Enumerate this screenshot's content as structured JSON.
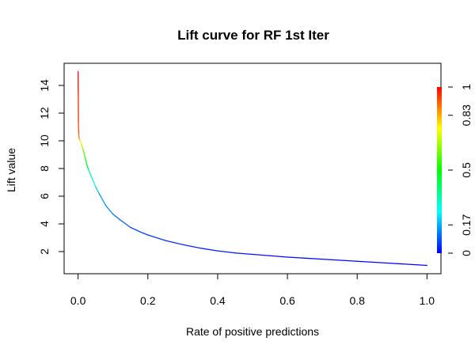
{
  "chart_data": {
    "type": "line",
    "title": "Lift curve for RF 1st Iter",
    "xlabel": "Rate of positive predictions",
    "ylabel": "Lift value",
    "xlim": [
      -0.04,
      1.04
    ],
    "ylim": [
      0.4,
      15.6
    ],
    "x_ticks": [
      "0.0",
      "0.2",
      "0.4",
      "0.6",
      "0.8",
      "1.0"
    ],
    "y_ticks": [
      "2",
      "4",
      "6",
      "8",
      "10",
      "12",
      "14"
    ],
    "colorkey": {
      "ticks": [
        "0",
        "0.17",
        "0.5",
        "0.83",
        "1"
      ],
      "colors": [
        "#0000ff",
        "#00ffff",
        "#00ff00",
        "#ffff00",
        "#ff0000"
      ]
    },
    "series": [
      {
        "x": [
          0.0,
          0.0005,
          0.001,
          0.002,
          0.003,
          0.004,
          0.006,
          0.008,
          0.01,
          0.015,
          0.02,
          0.025,
          0.03,
          0.04,
          0.05,
          0.06,
          0.08,
          0.1,
          0.12,
          0.15,
          0.18,
          0.2,
          0.25,
          0.3,
          0.35,
          0.4,
          0.45,
          0.5,
          0.55,
          0.6,
          0.7,
          0.8,
          0.9,
          1.0
        ],
        "y": [
          15.0,
          13.4,
          11.3,
          10.5,
          10.2,
          10.1,
          10.0,
          9.9,
          9.7,
          9.3,
          8.8,
          8.3,
          7.9,
          7.3,
          6.7,
          6.2,
          5.3,
          4.7,
          4.3,
          3.75,
          3.4,
          3.2,
          2.8,
          2.5,
          2.25,
          2.05,
          1.9,
          1.8,
          1.7,
          1.6,
          1.45,
          1.3,
          1.15,
          1.0
        ],
        "cutoff": [
          1.0,
          0.98,
          0.95,
          0.9,
          0.86,
          0.83,
          0.78,
          0.74,
          0.7,
          0.62,
          0.55,
          0.47,
          0.4,
          0.3,
          0.22,
          0.17,
          0.14,
          0.12,
          0.1,
          0.08,
          0.07,
          0.06,
          0.05,
          0.04,
          0.035,
          0.03,
          0.025,
          0.02,
          0.015,
          0.01,
          0.008,
          0.005,
          0.002,
          0.0
        ]
      }
    ],
    "grid": false,
    "legend": "none"
  }
}
